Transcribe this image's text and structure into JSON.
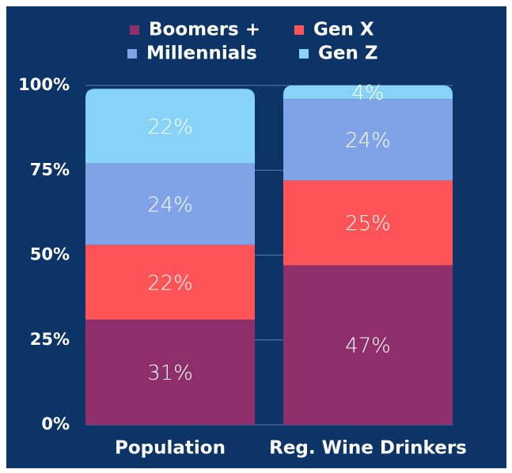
{
  "chart_data": {
    "type": "stacked_bar",
    "categories": [
      "Population",
      "Reg. Wine Drinkers"
    ],
    "series": [
      {
        "name": "Boomers +",
        "color": "#8e2f6b",
        "values": [
          31,
          47
        ],
        "value_labels": [
          "31%",
          "47%"
        ]
      },
      {
        "name": "Gen X",
        "color": "#ff5457",
        "values": [
          22,
          25
        ],
        "value_labels": [
          "22%",
          "25%"
        ]
      },
      {
        "name": "Millennials",
        "color": "#7fa3e6",
        "values": [
          24,
          24
        ],
        "value_labels": [
          "24%",
          "24%"
        ]
      },
      {
        "name": "Gen Z",
        "color": "#86d3f7",
        "values": [
          22,
          4
        ],
        "value_labels": [
          "22%",
          "4%"
        ]
      }
    ],
    "ylim": [
      0,
      100
    ],
    "yticks": [
      {
        "value": 0,
        "label": "0%"
      },
      {
        "value": 25,
        "label": "25%"
      },
      {
        "value": 50,
        "label": "50%"
      },
      {
        "value": 75,
        "label": "75%"
      },
      {
        "value": 100,
        "label": "100%"
      }
    ],
    "grid": true,
    "legend": "top"
  }
}
